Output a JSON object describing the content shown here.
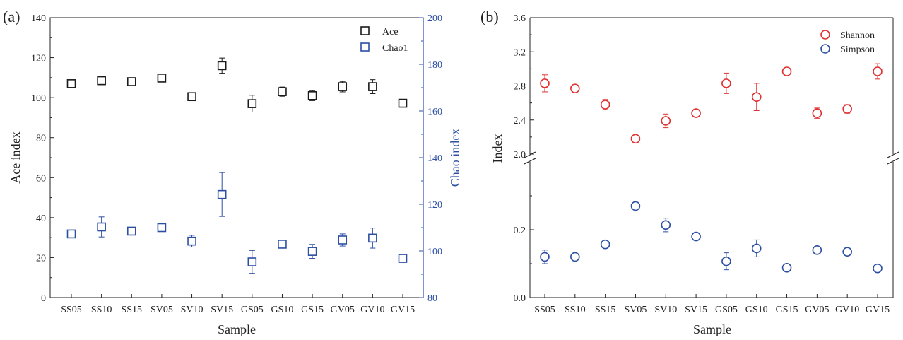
{
  "chart_data": [
    {
      "type": "scatter",
      "panel_label": "(a)",
      "categories": [
        "SS05",
        "SS10",
        "SS15",
        "SV05",
        "SV10",
        "SV15",
        "GS05",
        "GS10",
        "GS15",
        "GV05",
        "GV10",
        "GV15"
      ],
      "xlabel": "Sample",
      "ylabel": "Ace index",
      "y2label": "Chao index",
      "ylim": [
        0,
        140
      ],
      "y2lim": [
        80,
        200
      ],
      "yticks": [
        "0",
        "20",
        "40",
        "60",
        "80",
        "100",
        "120",
        "140"
      ],
      "y2ticks": [
        "80",
        "100",
        "120",
        "140",
        "160",
        "180",
        "200"
      ],
      "legend_position": "top-right",
      "series": [
        {
          "name": "Ace",
          "axis": "left",
          "color": "#1a1a1a",
          "values": [
            107,
            108.5,
            108,
            109.8,
            100.5,
            116,
            97,
            103,
            101,
            105.5,
            105.5,
            97.2
          ],
          "errors": [
            1.2,
            2.0,
            1.0,
            1.3,
            1.2,
            3.8,
            4.2,
            2.3,
            2.5,
            2.6,
            3.5,
            0.5
          ]
        },
        {
          "name": "Chao1",
          "axis": "right",
          "color": "#2c4fa3",
          "values": [
            107.3,
            110.3,
            108.5,
            110.0,
            104.2,
            124.2,
            95.3,
            102.9,
            99.8,
            104.7,
            105.5,
            96.8
          ],
          "errors": [
            1.2,
            4.3,
            1.0,
            1.0,
            2.5,
            9.4,
            4.9,
            1.0,
            3.0,
            2.6,
            4.3,
            0.5
          ]
        }
      ]
    },
    {
      "type": "scatter",
      "panel_label": "(b)",
      "categories": [
        "SS05",
        "SS10",
        "SS15",
        "SV05",
        "SV10",
        "SV15",
        "GS05",
        "GS10",
        "GS15",
        "GV05",
        "GV10",
        "GV15"
      ],
      "xlabel": "Sample",
      "ylabel": "Index",
      "axis_break": true,
      "upper_ylim": [
        2.0,
        3.6
      ],
      "upper_yticks": [
        "2.0",
        "2.4",
        "2.8",
        "3.2",
        "3.6"
      ],
      "lower_ylim": [
        0.0,
        0.4
      ],
      "lower_yticks": [
        "0.0",
        "0.2"
      ],
      "legend_position": "top-right",
      "series": [
        {
          "name": "Shannon",
          "color": "#e03030",
          "values": [
            2.83,
            2.77,
            2.58,
            2.18,
            2.39,
            2.48,
            2.83,
            2.67,
            2.97,
            2.48,
            2.53,
            2.97
          ],
          "errors": [
            0.1,
            0.02,
            0.06,
            0.03,
            0.08,
            0.04,
            0.12,
            0.16,
            0.02,
            0.06,
            0.05,
            0.09
          ]
        },
        {
          "name": "Simpson",
          "color": "#2c4fa3",
          "values": [
            0.12,
            0.12,
            0.157,
            0.27,
            0.214,
            0.18,
            0.107,
            0.145,
            0.088,
            0.14,
            0.135,
            0.086
          ],
          "errors": [
            0.02,
            0.003,
            0.01,
            0.005,
            0.02,
            0.01,
            0.025,
            0.025,
            0.005,
            0.005,
            0.005,
            0.003
          ]
        }
      ]
    }
  ]
}
